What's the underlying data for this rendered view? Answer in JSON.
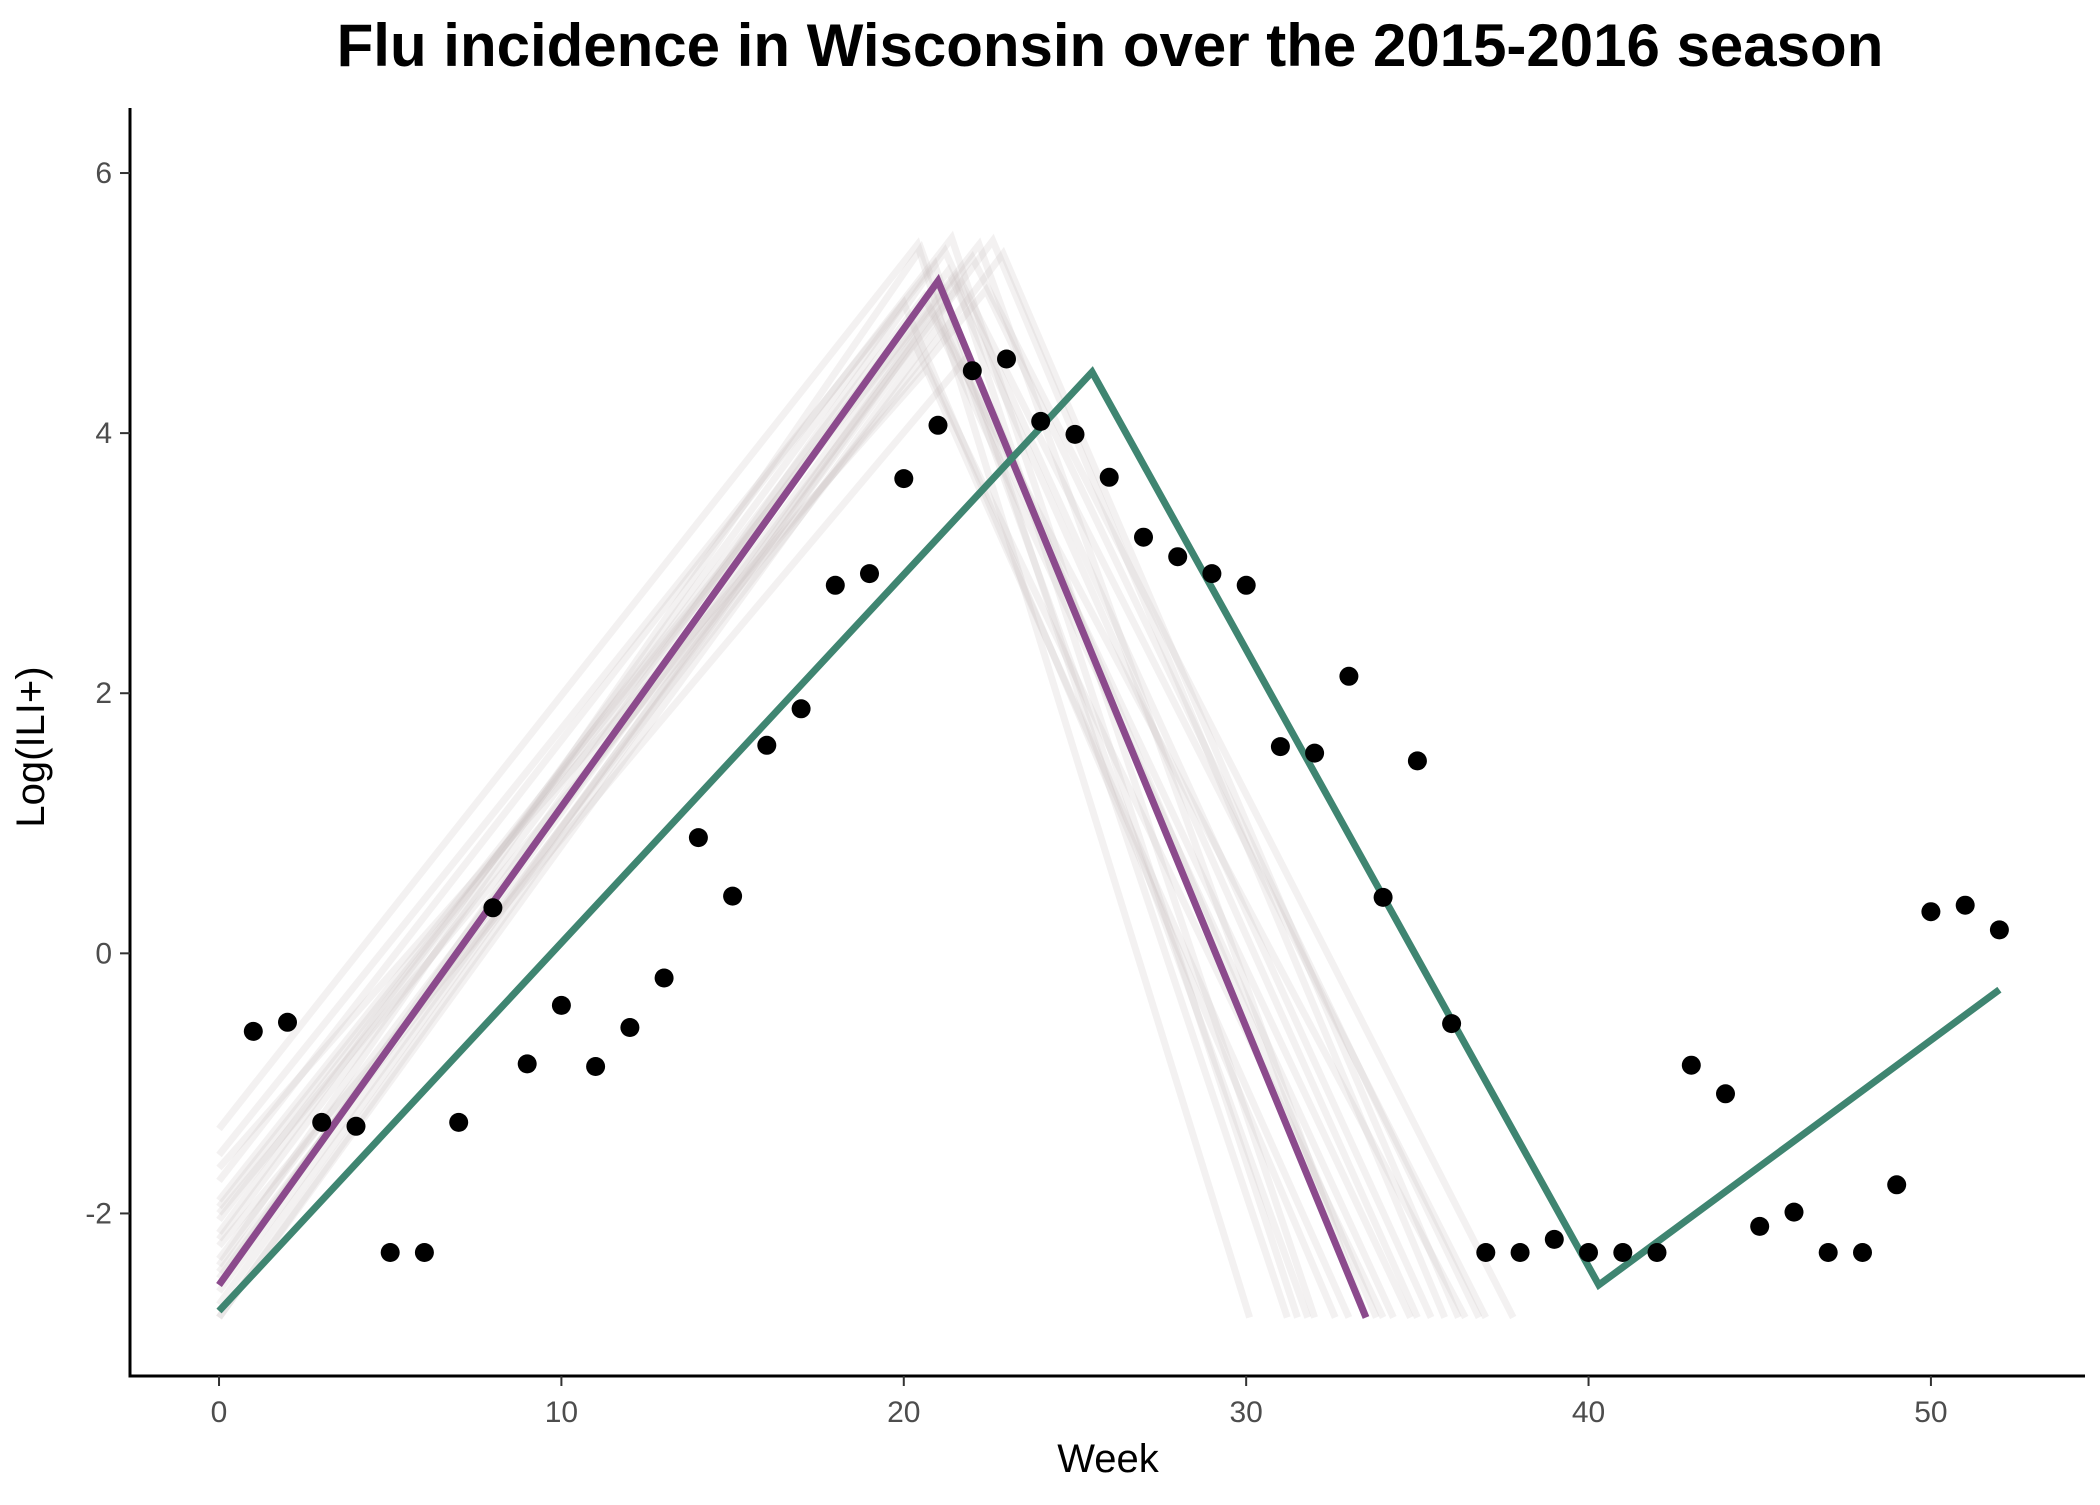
{
  "chart_data": {
    "type": "scatter",
    "title": "Flu incidence in Wisconsin over the 2015-2016 season",
    "xlabel": "Week",
    "ylabel": "Log(ILI+)",
    "xlim": [
      -2.6,
      54.5
    ],
    "ylim": [
      -3.25,
      6.5
    ],
    "xticks": [
      0,
      10,
      20,
      30,
      40,
      50
    ],
    "yticks": [
      -2,
      0,
      2,
      4,
      6
    ],
    "ytick_labels": [
      "-2",
      "0",
      "2",
      "4",
      "6"
    ],
    "grid": false,
    "legend": "none",
    "colors": {
      "points": "#000000",
      "purple_fit": "#8b4a8c",
      "green_fit": "#3f8571",
      "ensemble": "#c9bfc1"
    },
    "observed": {
      "x": [
        1,
        2,
        3,
        4,
        5,
        6,
        7,
        8,
        9,
        10,
        11,
        12,
        13,
        14,
        15,
        16,
        17,
        18,
        19,
        20,
        21,
        22,
        23,
        24,
        25,
        26,
        27,
        28,
        29,
        30,
        31,
        32,
        33,
        34,
        35,
        36,
        37,
        38,
        39,
        40,
        41,
        42,
        43,
        44,
        45,
        46,
        47,
        48,
        49,
        50,
        51,
        52
      ],
      "y": [
        -0.6,
        -0.53,
        -1.3,
        -1.33,
        -2.3,
        -2.3,
        -1.3,
        0.35,
        -0.85,
        -0.4,
        -0.87,
        -0.57,
        -0.19,
        0.89,
        0.44,
        1.6,
        1.88,
        2.83,
        2.92,
        3.65,
        4.06,
        4.48,
        4.57,
        4.09,
        3.99,
        3.66,
        3.2,
        3.05,
        2.92,
        2.83,
        1.59,
        1.54,
        2.13,
        0.43,
        1.48,
        -0.54,
        -2.3,
        -2.3,
        -2.2,
        -2.3,
        -2.3,
        -2.3,
        -0.86,
        -1.08,
        -2.1,
        -1.99,
        -2.3,
        -2.3,
        -1.78,
        0.32,
        0.37,
        0.18
      ]
    },
    "series": [
      {
        "values": [
          [
            0,
            -2.55
          ],
          [
            21,
            5.17
          ],
          [
            33.5,
            -2.8
          ]
        ]
      },
      {
        "values": [
          [
            0,
            -2.75
          ],
          [
            25.5,
            4.47
          ],
          [
            40.3,
            -2.55
          ],
          [
            52,
            -0.28
          ]
        ]
      }
    ],
    "ensemble": {
      "floor": -2.8,
      "curves": [
        [
          -1.35,
          20.4,
          5.45,
          30.1
        ],
        [
          -1.55,
          20.9,
          5.3,
          31.2
        ],
        [
          -1.75,
          21.4,
          5.5,
          32.0
        ],
        [
          -1.9,
          22.2,
          5.45,
          33.5
        ],
        [
          -2.05,
          20.6,
          5.05,
          34.3
        ],
        [
          -2.2,
          21.3,
          5.25,
          35.0
        ],
        [
          -2.35,
          22.6,
          5.48,
          35.8
        ],
        [
          -2.5,
          20.8,
          4.95,
          36.4
        ],
        [
          -2.6,
          21.7,
          5.15,
          37.0
        ],
        [
          -2.7,
          22.0,
          5.35,
          37.8
        ],
        [
          -2.8,
          21.1,
          4.85,
          34.8
        ],
        [
          -2.8,
          20.3,
          4.7,
          33.0
        ],
        [
          -1.95,
          21.5,
          5.2,
          31.5
        ],
        [
          -2.15,
          20.0,
          5.0,
          32.6
        ],
        [
          -2.45,
          22.9,
          5.38,
          36.2
        ],
        [
          -2.25,
          21.9,
          4.6,
          33.8
        ],
        [
          -1.65,
          20.7,
          4.5,
          34.0
        ],
        [
          -2.55,
          21.2,
          5.4,
          35.4
        ],
        [
          -2.0,
          22.4,
          5.1,
          36.8
        ],
        [
          -2.4,
          20.5,
          5.42,
          31.8
        ]
      ]
    }
  }
}
